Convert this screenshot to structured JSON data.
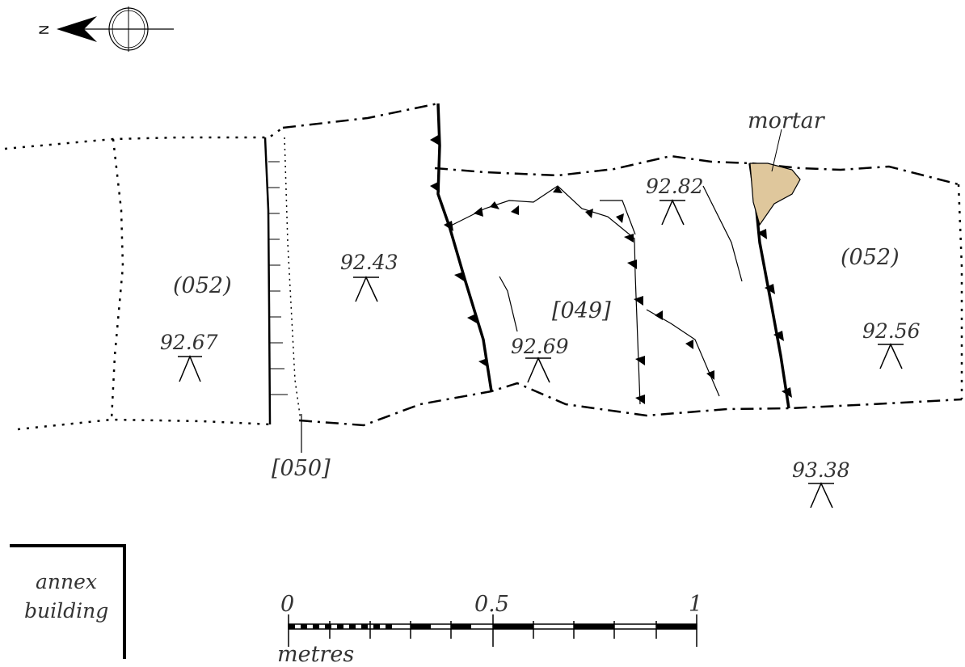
{
  "labels": {
    "mortar": "mortar",
    "context_052_left": "(052)",
    "context_052_right": "(052)",
    "cut_049": "[049]",
    "cut_050": "[050]",
    "annex_line1": "annex",
    "annex_line2": "building"
  },
  "north": {
    "letter": "N"
  },
  "levels": [
    {
      "id": "lvl-1",
      "value": "92.67"
    },
    {
      "id": "lvl-2",
      "value": "92.43"
    },
    {
      "id": "lvl-3",
      "value": "92.69"
    },
    {
      "id": "lvl-4",
      "value": "92.82"
    },
    {
      "id": "lvl-5",
      "value": "92.56"
    },
    {
      "id": "lvl-6",
      "value": "93.38"
    }
  ],
  "scale_bar": {
    "tick_labels": [
      "0",
      "0.5",
      "1"
    ],
    "unit": "metres"
  },
  "colors": {
    "ink": "#000000",
    "text": "#333333",
    "mortar_fill": "#dfc79c"
  }
}
